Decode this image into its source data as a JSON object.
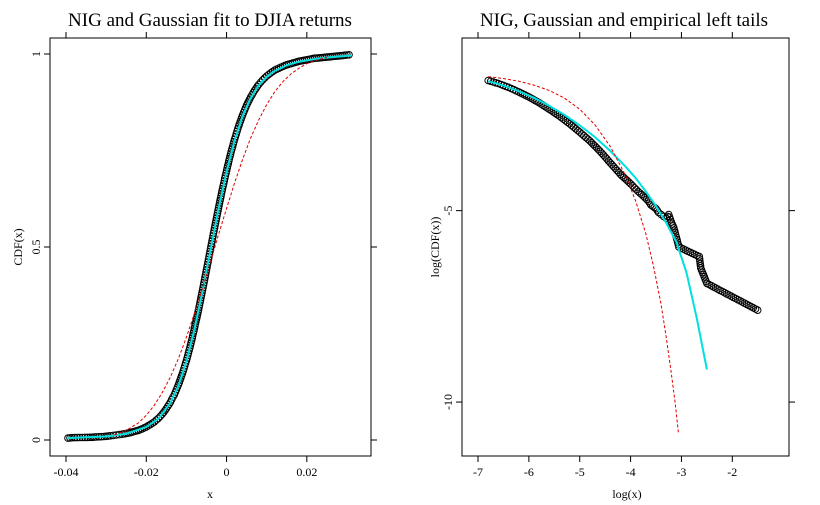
{
  "chart_data": [
    {
      "type": "line",
      "title": "NIG and Gaussian fit to DJIA returns",
      "xlabel": "x",
      "ylabel": "CDF(x)",
      "xlim": [
        -0.04,
        0.032
      ],
      "ylim": [
        0,
        1
      ],
      "x_ticks": [
        -0.04,
        -0.02,
        0,
        0.02
      ],
      "x_tick_labels": [
        "-0.04",
        "-0.02",
        "0",
        "0.02"
      ],
      "y_ticks": [
        0,
        0.5,
        1
      ],
      "y_tick_labels": [
        "0",
        "0.5",
        "1"
      ],
      "series": [
        {
          "style": "points",
          "color": "#000000",
          "x": [
            -0.0395,
            -0.0385,
            -0.034,
            -0.0335,
            -0.0325,
            -0.0305,
            -0.0295,
            -0.029,
            -0.0275,
            -0.026,
            -0.025,
            -0.024,
            -0.023,
            -0.022,
            -0.021,
            -0.02,
            -0.019,
            -0.018,
            -0.017,
            -0.016,
            -0.015,
            -0.014,
            -0.013,
            -0.012,
            -0.011,
            -0.01,
            -0.009,
            -0.008,
            -0.007,
            -0.006,
            -0.005,
            -0.004,
            -0.003,
            -0.002,
            -0.001,
            0.0,
            0.001,
            0.002,
            0.003,
            0.004,
            0.005,
            0.006,
            0.007,
            0.008,
            0.009,
            0.01,
            0.011,
            0.012,
            0.013,
            0.014,
            0.015,
            0.016,
            0.017,
            0.018,
            0.019,
            0.02,
            0.021,
            0.022,
            0.023,
            0.024,
            0.025,
            0.026,
            0.027,
            0.028,
            0.029,
            0.0295,
            0.0305
          ],
          "y": [
            0.005,
            0.006,
            0.007,
            0.007,
            0.008,
            0.009,
            0.01,
            0.011,
            0.013,
            0.015,
            0.017,
            0.019,
            0.022,
            0.025,
            0.029,
            0.034,
            0.04,
            0.047,
            0.056,
            0.067,
            0.081,
            0.098,
            0.118,
            0.143,
            0.172,
            0.206,
            0.245,
            0.289,
            0.337,
            0.388,
            0.441,
            0.495,
            0.549,
            0.601,
            0.651,
            0.698,
            0.741,
            0.779,
            0.813,
            0.842,
            0.867,
            0.888,
            0.906,
            0.921,
            0.933,
            0.943,
            0.951,
            0.958,
            0.963,
            0.968,
            0.972,
            0.975,
            0.978,
            0.981,
            0.983,
            0.985,
            0.987,
            0.989,
            0.99,
            0.991,
            0.992,
            0.993,
            0.994,
            0.995,
            0.996,
            0.997,
            0.998
          ]
        },
        {
          "style": "solid",
          "color": "#00e0e0",
          "x": [
            -0.0395,
            -0.035,
            -0.03,
            -0.025,
            -0.02,
            -0.017,
            -0.014,
            -0.012,
            -0.01,
            -0.008,
            -0.006,
            -0.004,
            -0.002,
            0.0,
            0.002,
            0.004,
            0.006,
            0.008,
            0.01,
            0.012,
            0.015,
            0.018,
            0.022,
            0.026,
            0.03,
            0.031
          ],
          "y": [
            0.005,
            0.007,
            0.009,
            0.016,
            0.034,
            0.055,
            0.096,
            0.14,
            0.203,
            0.286,
            0.385,
            0.492,
            0.598,
            0.695,
            0.776,
            0.839,
            0.885,
            0.919,
            0.941,
            0.956,
            0.971,
            0.98,
            0.987,
            0.992,
            0.995,
            0.996
          ]
        },
        {
          "style": "dashed",
          "color": "#e00000",
          "x": [
            -0.028,
            -0.025,
            -0.022,
            -0.02,
            -0.018,
            -0.016,
            -0.014,
            -0.012,
            -0.01,
            -0.008,
            -0.006,
            -0.004,
            -0.002,
            0.0,
            0.002,
            0.004,
            0.006,
            0.008,
            0.01,
            0.012,
            0.014,
            0.016,
            0.018,
            0.02,
            0.022,
            0.025
          ],
          "y": [
            0.013,
            0.025,
            0.044,
            0.064,
            0.09,
            0.123,
            0.163,
            0.211,
            0.266,
            0.328,
            0.393,
            0.462,
            0.532,
            0.6,
            0.666,
            0.727,
            0.782,
            0.829,
            0.869,
            0.902,
            0.928,
            0.948,
            0.963,
            0.975,
            0.983,
            0.991
          ]
        }
      ]
    },
    {
      "type": "line",
      "title": "NIG, Gaussian and empirical left tails",
      "xlabel": "log(x)",
      "ylabel": "log(CDF(x))",
      "xlim": [
        -7,
        -1.2
      ],
      "ylim": [
        -11.2,
        -0.7
      ],
      "x_ticks": [
        -7,
        -6,
        -5,
        -4,
        -3,
        -2
      ],
      "x_tick_labels": [
        "-7",
        "-6",
        "-5",
        "-4",
        "-3",
        "-2"
      ],
      "y_ticks": [
        -10,
        -5
      ],
      "y_tick_labels": [
        "-10",
        "-5"
      ],
      "series": [
        {
          "style": "points",
          "color": "#000000",
          "x": [
            -6.8,
            -6.6,
            -6.4,
            -6.2,
            -6.0,
            -5.8,
            -5.6,
            -5.4,
            -5.2,
            -5.0,
            -4.8,
            -4.6,
            -4.4,
            -4.2,
            -4.0,
            -3.85,
            -3.75,
            -3.65,
            -3.6,
            -3.5,
            -3.45,
            -3.4,
            -3.35,
            -3.3,
            -3.25,
            -3.2,
            -3.15,
            -3.1,
            -3.05,
            -2.65,
            -2.62,
            -2.5,
            -1.5
          ],
          "y": [
            -1.6,
            -1.68,
            -1.78,
            -1.9,
            -2.03,
            -2.18,
            -2.35,
            -2.53,
            -2.73,
            -2.95,
            -3.18,
            -3.45,
            -3.75,
            -4.05,
            -4.3,
            -4.5,
            -4.62,
            -4.75,
            -4.85,
            -4.95,
            -5.05,
            -5.1,
            -5.15,
            -5.2,
            -5.1,
            -5.3,
            -5.45,
            -5.7,
            -5.95,
            -6.2,
            -6.5,
            -6.9,
            -7.6
          ]
        },
        {
          "style": "solid",
          "color": "#00e0e0",
          "x": [
            -6.8,
            -6.5,
            -6.2,
            -5.9,
            -5.6,
            -5.3,
            -5.0,
            -4.7,
            -4.4,
            -4.1,
            -3.9,
            -3.7,
            -3.5,
            -3.3,
            -3.1,
            -2.9,
            -2.7,
            -2.5
          ],
          "y": [
            -1.62,
            -1.73,
            -1.88,
            -2.05,
            -2.26,
            -2.5,
            -2.77,
            -3.08,
            -3.44,
            -3.85,
            -4.15,
            -4.5,
            -4.88,
            -5.32,
            -5.82,
            -6.62,
            -7.8,
            -9.15
          ]
        },
        {
          "style": "dashed",
          "color": "#e00000",
          "x": [
            -6.8,
            -6.5,
            -6.2,
            -5.9,
            -5.6,
            -5.3,
            -5.0,
            -4.7,
            -4.4,
            -4.1,
            -3.9,
            -3.7,
            -3.55,
            -3.4,
            -3.3,
            -3.2,
            -3.12,
            -3.06
          ],
          "y": [
            -1.5,
            -1.55,
            -1.62,
            -1.72,
            -1.86,
            -2.06,
            -2.35,
            -2.76,
            -3.32,
            -4.08,
            -4.75,
            -5.6,
            -6.45,
            -7.45,
            -8.3,
            -9.25,
            -10.05,
            -10.8
          ]
        }
      ]
    }
  ]
}
